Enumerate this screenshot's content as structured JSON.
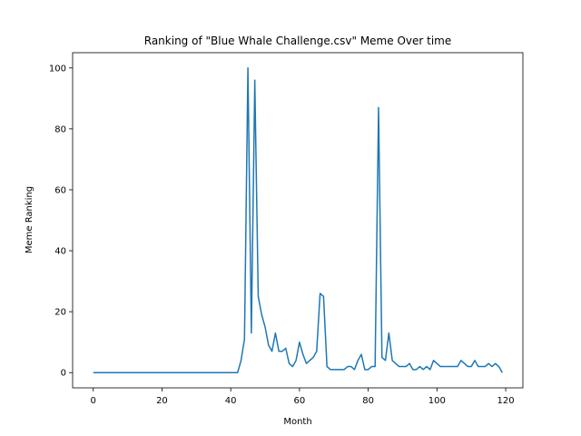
{
  "chart_data": {
    "type": "line",
    "title": "Ranking of \"Blue Whale Challenge.csv\" Meme Over time",
    "xlabel": "Month",
    "ylabel": "Meme Ranking",
    "xlim": [
      -6,
      125
    ],
    "ylim": [
      -5,
      105
    ],
    "xticks": [
      0,
      20,
      40,
      60,
      80,
      100,
      120
    ],
    "yticks": [
      0,
      20,
      40,
      60,
      80,
      100
    ],
    "grid": false,
    "series": [
      {
        "color": "#1f77b4",
        "x": [
          0,
          1,
          2,
          3,
          4,
          5,
          6,
          7,
          8,
          9,
          10,
          11,
          12,
          13,
          14,
          15,
          16,
          17,
          18,
          19,
          20,
          21,
          22,
          23,
          24,
          25,
          26,
          27,
          28,
          29,
          30,
          31,
          32,
          33,
          34,
          35,
          36,
          37,
          38,
          39,
          40,
          41,
          42,
          43,
          44,
          45,
          46,
          47,
          48,
          49,
          50,
          51,
          52,
          53,
          54,
          55,
          56,
          57,
          58,
          59,
          60,
          61,
          62,
          63,
          64,
          65,
          66,
          67,
          68,
          69,
          70,
          71,
          72,
          73,
          74,
          75,
          76,
          77,
          78,
          79,
          80,
          81,
          82,
          83,
          84,
          85,
          86,
          87,
          88,
          89,
          90,
          91,
          92,
          93,
          94,
          95,
          96,
          97,
          98,
          99,
          100,
          101,
          102,
          103,
          104,
          105,
          106,
          107,
          108,
          109,
          110,
          111,
          112,
          113,
          114,
          115,
          116,
          117,
          118,
          119
        ],
        "y": [
          0,
          0,
          0,
          0,
          0,
          0,
          0,
          0,
          0,
          0,
          0,
          0,
          0,
          0,
          0,
          0,
          0,
          0,
          0,
          0,
          0,
          0,
          0,
          0,
          0,
          0,
          0,
          0,
          0,
          0,
          0,
          0,
          0,
          0,
          0,
          0,
          0,
          0,
          0,
          0,
          0,
          0,
          0,
          4,
          11,
          100,
          13,
          96,
          25,
          19,
          15,
          9,
          7,
          13,
          7,
          7,
          8,
          3,
          2,
          4,
          10,
          6,
          3,
          4,
          5,
          7,
          26,
          25,
          2,
          1,
          1,
          1,
          1,
          1,
          2,
          2,
          1,
          4,
          6,
          1,
          1,
          2,
          2,
          87,
          5,
          4,
          13,
          4,
          3,
          2,
          2,
          2,
          3,
          1,
          1,
          2,
          1,
          2,
          1,
          4,
          3,
          2,
          2,
          2,
          2,
          2,
          2,
          4,
          3,
          2,
          2,
          4,
          2,
          2,
          2,
          3,
          2,
          3,
          2,
          0
        ]
      }
    ]
  }
}
